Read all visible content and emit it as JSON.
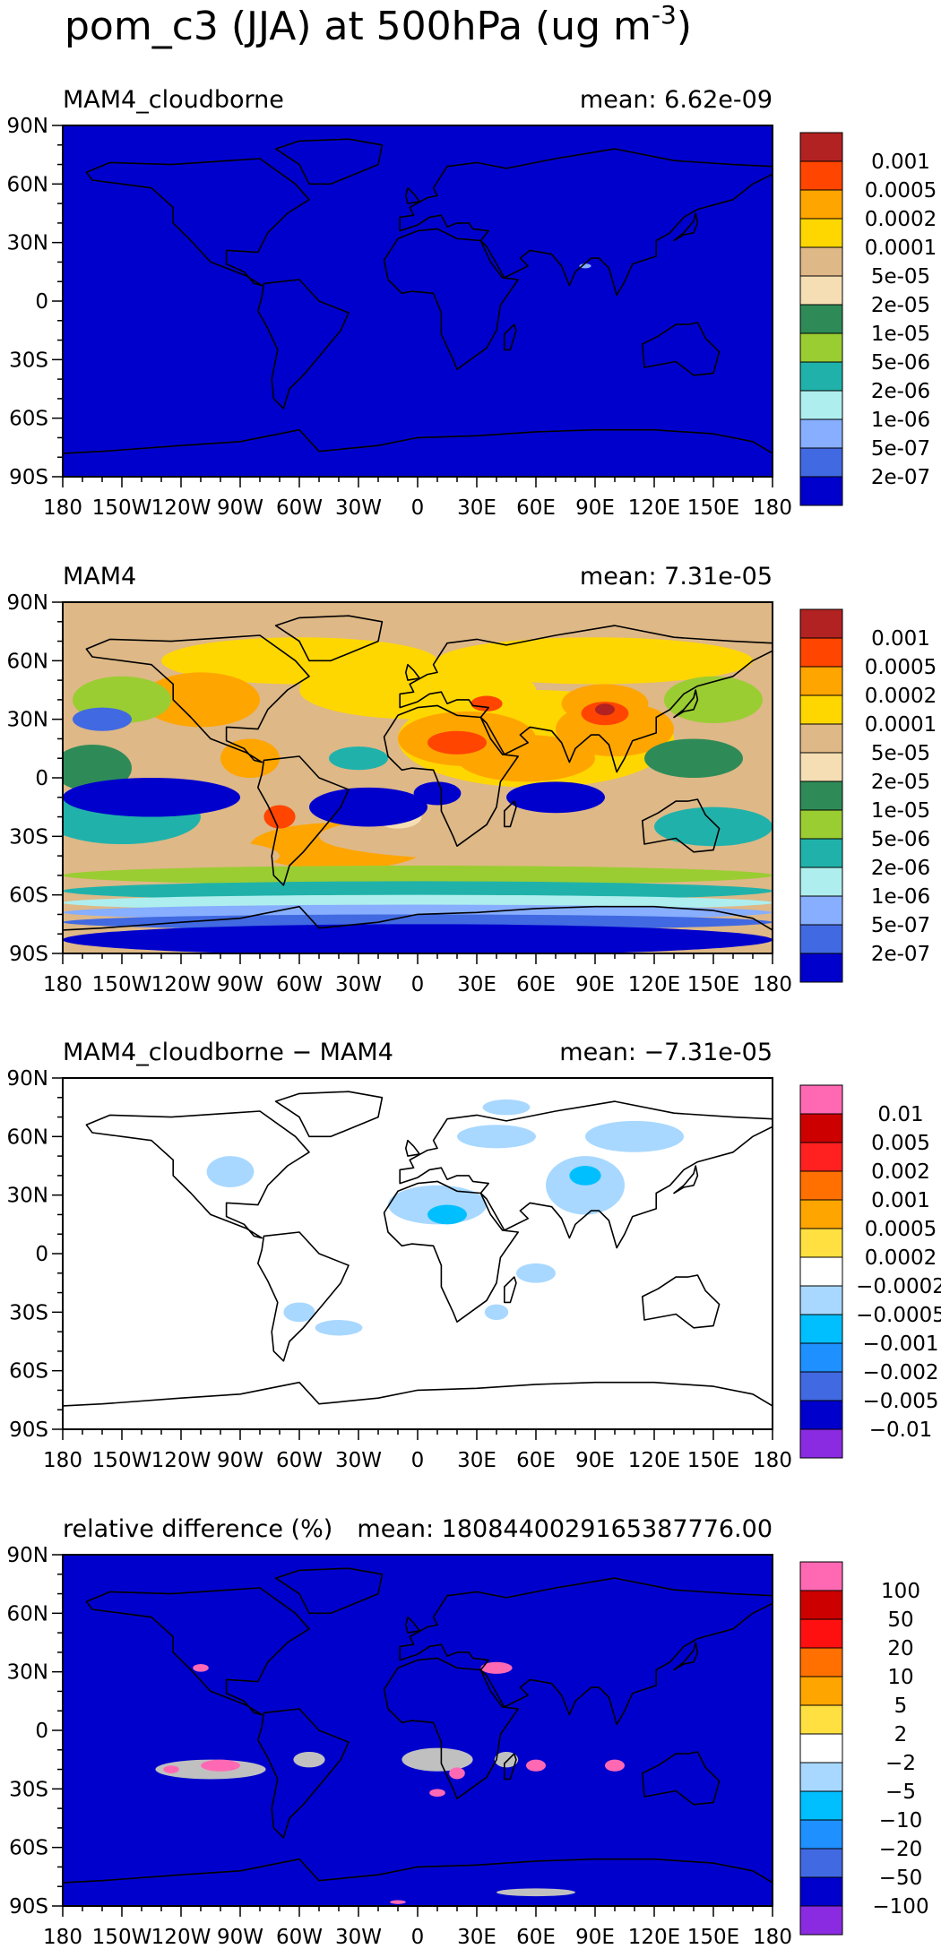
{
  "title": "pom_c3 (JJA) at 500hPa (ug m",
  "title_superscript": "-3",
  "title_close": ")",
  "x_ticks": [
    "180",
    "150W",
    "120W",
    "90W",
    "60W",
    "30W",
    "0",
    "30E",
    "60E",
    "90E",
    "120E",
    "150E",
    "180"
  ],
  "y_ticks": [
    "90N",
    "60N",
    "30N",
    "0",
    "30S",
    "60S",
    "90S"
  ],
  "chart_data": [
    {
      "type": "heatmap",
      "panel_label": "MAM4_cloudborne",
      "mean_text": "mean: 6.62e-09",
      "background": "#0000cd",
      "colorbar": {
        "labels": [
          "0.001",
          "0.0005",
          "0.0002",
          "0.0001",
          "5e-05",
          "2e-05",
          "1e-05",
          "5e-06",
          "2e-06",
          "1e-06",
          "5e-07",
          "2e-07"
        ],
        "colors": [
          "#b22222",
          "#ff4500",
          "#ffa500",
          "#ffd700",
          "#deb887",
          "#f5deb3",
          "#2e8b57",
          "#9acd32",
          "#20b2aa",
          "#afeeee",
          "#87aeff",
          "#4169e1",
          "#0000cd"
        ]
      }
    },
    {
      "type": "heatmap",
      "panel_label": "MAM4",
      "mean_text": "mean: 7.31e-05",
      "background": "#deb887",
      "colorbar": {
        "labels": [
          "0.001",
          "0.0005",
          "0.0002",
          "0.0001",
          "5e-05",
          "2e-05",
          "1e-05",
          "5e-06",
          "2e-06",
          "1e-06",
          "5e-07",
          "2e-07"
        ],
        "colors": [
          "#b22222",
          "#ff4500",
          "#ffa500",
          "#ffd700",
          "#deb887",
          "#f5deb3",
          "#2e8b57",
          "#9acd32",
          "#20b2aa",
          "#afeeee",
          "#87aeff",
          "#4169e1",
          "#0000cd"
        ]
      }
    },
    {
      "type": "heatmap",
      "panel_label": "MAM4_cloudborne − MAM4",
      "mean_text": "mean: −7.31e-05",
      "background": "#ffffff",
      "colorbar": {
        "labels": [
          "0.01",
          "0.005",
          "0.002",
          "0.001",
          "0.0005",
          "0.0002",
          "−0.0002",
          "−0.0005",
          "−0.001",
          "−0.002",
          "−0.005",
          "−0.01"
        ],
        "colors": [
          "#ff69b4",
          "#cd0000",
          "#ff2020",
          "#ff7000",
          "#ffa500",
          "#ffe040",
          "#ffffff",
          "#a8d8ff",
          "#00bfff",
          "#1e90ff",
          "#4169e1",
          "#0000cd",
          "#8a2be2"
        ]
      }
    },
    {
      "type": "heatmap",
      "panel_label": "relative difference (%)",
      "mean_text": "mean: 1808440029165387776.00",
      "background": "#0000cd",
      "colorbar": {
        "labels": [
          "100",
          "50",
          "20",
          "10",
          "5",
          "2",
          "−2",
          "−5",
          "−10",
          "−20",
          "−50",
          "−100"
        ],
        "colors": [
          "#ff69b4",
          "#cd0000",
          "#ff1010",
          "#ff7000",
          "#ffa500",
          "#ffe040",
          "#ffffff",
          "#a8d8ff",
          "#00bfff",
          "#1e90ff",
          "#4169e1",
          "#0000cd",
          "#8a2be2"
        ]
      }
    }
  ]
}
